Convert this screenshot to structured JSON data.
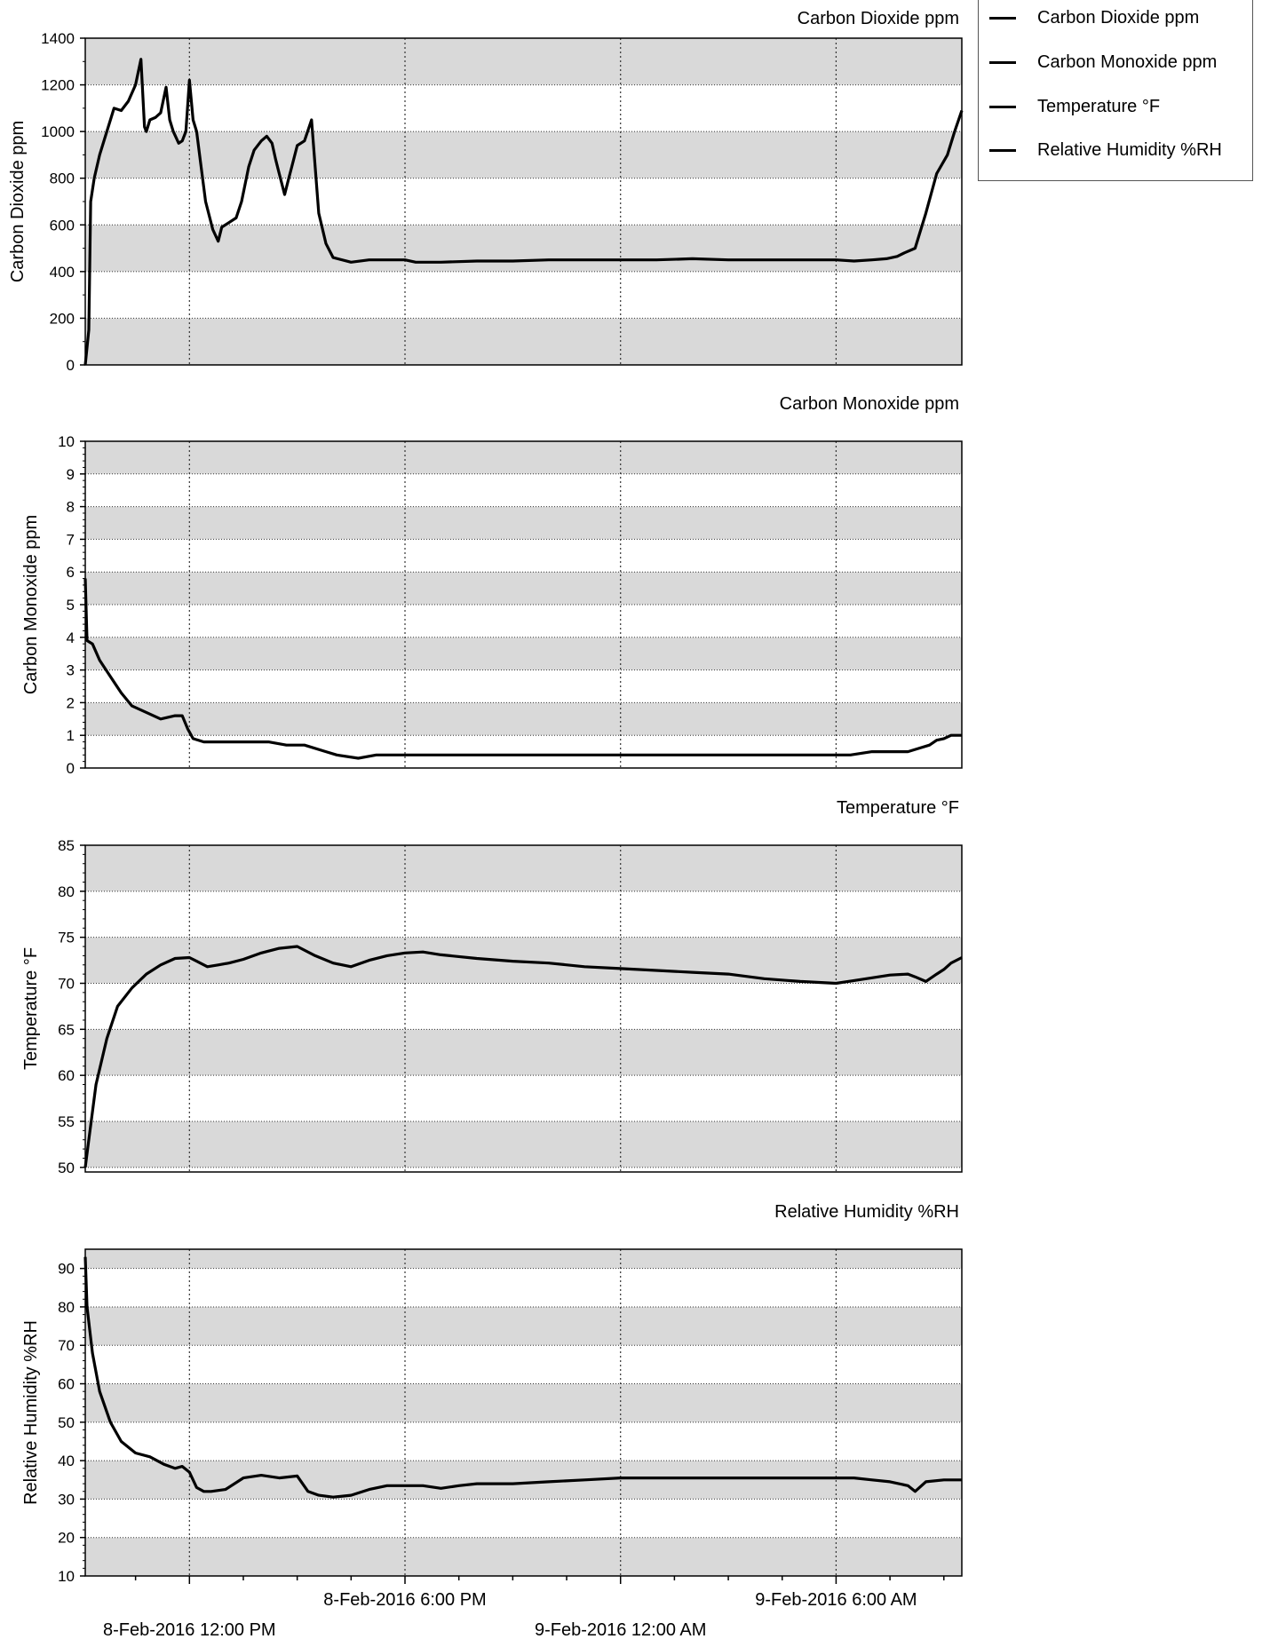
{
  "time_axis": {
    "labels_row1": [
      {
        "t": 18,
        "text": "8-Feb-2016 6:00 PM"
      },
      {
        "t": 30,
        "text": "9-Feb-2016 6:00 AM"
      }
    ],
    "labels_row2": [
      {
        "t": 12,
        "text": "8-Feb-2016 12:00 PM"
      },
      {
        "t": 24,
        "text": "9-Feb-2016 12:00 AM"
      }
    ],
    "range": [
      9.1,
      33.5
    ],
    "major_ticks": [
      12,
      18,
      24,
      30
    ],
    "note_t": "hours since 8-Feb-2016 00:00"
  },
  "legend": {
    "items": [
      "Carbon Dioxide ppm",
      "Carbon Monoxide ppm",
      "Temperature °F",
      "Relative Humidity %RH"
    ]
  },
  "chart_data": [
    {
      "type": "line",
      "title": "Carbon Dioxide ppm",
      "ylabel": "Carbon Dioxide ppm",
      "xlabel": "",
      "ylim": [
        0,
        1400
      ],
      "yticks": [
        0,
        200,
        400,
        600,
        800,
        1000,
        1200,
        1400
      ],
      "series": [
        {
          "name": "Carbon Dioxide ppm",
          "x": [
            9.1,
            9.2,
            9.25,
            9.35,
            9.5,
            9.7,
            9.9,
            10.1,
            10.3,
            10.5,
            10.65,
            10.75,
            10.8,
            10.9,
            11.05,
            11.2,
            11.35,
            11.45,
            11.55,
            11.7,
            11.8,
            11.9,
            12.0,
            12.1,
            12.2,
            12.3,
            12.45,
            12.65,
            12.8,
            12.9,
            13.1,
            13.3,
            13.45,
            13.65,
            13.8,
            14.0,
            14.15,
            14.3,
            14.4,
            14.5,
            14.65,
            14.75,
            14.85,
            15.0,
            15.2,
            15.4,
            15.6,
            15.8,
            16.0,
            16.5,
            17.0,
            17.5,
            18.0,
            18.3,
            18.6,
            19.0,
            20,
            21,
            22,
            23,
            24,
            25,
            26,
            27,
            28,
            29,
            30,
            30.5,
            31,
            31.4,
            31.7,
            31.9,
            32.2,
            32.5,
            32.8,
            33.1,
            33.3,
            33.5
          ],
          "values": [
            0,
            150,
            700,
            800,
            900,
            1000,
            1100,
            1090,
            1130,
            1200,
            1310,
            1020,
            1000,
            1050,
            1060,
            1080,
            1190,
            1050,
            1000,
            950,
            960,
            1000,
            1220,
            1050,
            1000,
            880,
            700,
            580,
            530,
            590,
            610,
            630,
            700,
            850,
            920,
            960,
            980,
            950,
            880,
            820,
            730,
            790,
            850,
            940,
            960,
            1050,
            650,
            520,
            460,
            440,
            450,
            450,
            450,
            440,
            440,
            440,
            445,
            445,
            450,
            450,
            450,
            450,
            455,
            450,
            450,
            450,
            450,
            445,
            450,
            455,
            465,
            480,
            500,
            650,
            820,
            900,
            1000,
            1090
          ]
        }
      ]
    },
    {
      "type": "line",
      "title": "Carbon Monoxide ppm",
      "ylabel": "Carbon Monoxide ppm",
      "xlabel": "",
      "ylim": [
        0,
        10
      ],
      "yticks": [
        0,
        1,
        2,
        3,
        4,
        5,
        6,
        7,
        8,
        9,
        10
      ],
      "series": [
        {
          "name": "Carbon Monoxide ppm",
          "x": [
            9.1,
            9.15,
            9.3,
            9.5,
            9.8,
            10.1,
            10.4,
            10.8,
            11.2,
            11.6,
            11.8,
            11.95,
            12.1,
            12.4,
            12.8,
            13.5,
            14.2,
            14.7,
            15.2,
            15.8,
            16.1,
            16.7,
            17.2,
            17.8,
            18.5,
            20,
            22,
            24,
            26,
            28,
            30,
            30.4,
            31,
            31.5,
            32,
            32.3,
            32.6,
            32.8,
            33.0,
            33.2,
            33.5
          ],
          "values": [
            5.8,
            3.9,
            3.8,
            3.3,
            2.8,
            2.3,
            1.9,
            1.7,
            1.5,
            1.6,
            1.6,
            1.2,
            0.9,
            0.8,
            0.8,
            0.8,
            0.8,
            0.7,
            0.7,
            0.5,
            0.4,
            0.3,
            0.4,
            0.4,
            0.4,
            0.4,
            0.4,
            0.4,
            0.4,
            0.4,
            0.4,
            0.4,
            0.5,
            0.5,
            0.5,
            0.6,
            0.7,
            0.85,
            0.9,
            1.0,
            1.0
          ]
        }
      ]
    },
    {
      "type": "line",
      "title": "Temperature °F",
      "ylabel": "Temperature °F",
      "xlabel": "",
      "ylim": [
        49.5,
        85
      ],
      "yticks": [
        50,
        55,
        60,
        65,
        70,
        75,
        80,
        85
      ],
      "series": [
        {
          "name": "Temperature °F",
          "x": [
            9.1,
            9.2,
            9.4,
            9.7,
            10.0,
            10.4,
            10.8,
            11.2,
            11.6,
            12.0,
            12.2,
            12.5,
            12.8,
            13.1,
            13.5,
            14.0,
            14.5,
            15.0,
            15.5,
            16.0,
            16.5,
            17.0,
            17.5,
            18.0,
            18.5,
            19.0,
            20,
            21,
            22,
            23,
            24,
            25,
            26,
            27,
            28,
            29,
            30,
            30.5,
            31,
            31.5,
            32.0,
            32.2,
            32.5,
            32.8,
            33.0,
            33.2,
            33.5
          ],
          "values": [
            50,
            53,
            59,
            64,
            67.5,
            69.5,
            71,
            72,
            72.7,
            72.8,
            72.4,
            71.8,
            72,
            72.2,
            72.6,
            73.3,
            73.8,
            74,
            73,
            72.2,
            71.8,
            72.5,
            73,
            73.3,
            73.4,
            73.1,
            72.7,
            72.4,
            72.2,
            71.8,
            71.6,
            71.4,
            71.2,
            71,
            70.5,
            70.2,
            70,
            70.3,
            70.6,
            70.9,
            71,
            70.7,
            70.2,
            71,
            71.5,
            72.2,
            72.8
          ]
        }
      ]
    },
    {
      "type": "line",
      "title": "Relative Humidity %RH",
      "ylabel": "Relative Humidity %RH",
      "xlabel": "",
      "ylim": [
        10,
        95
      ],
      "yticks": [
        10,
        20,
        30,
        40,
        50,
        60,
        70,
        80,
        90
      ],
      "series": [
        {
          "name": "Relative Humidity %RH",
          "x": [
            9.1,
            9.15,
            9.3,
            9.5,
            9.8,
            10.1,
            10.5,
            10.9,
            11.3,
            11.6,
            11.8,
            12.0,
            12.2,
            12.4,
            12.6,
            13.0,
            13.5,
            14.0,
            14.5,
            15.0,
            15.3,
            15.6,
            16.0,
            16.5,
            17.0,
            17.5,
            18.0,
            18.5,
            19.0,
            19.5,
            20,
            21,
            22,
            23,
            24,
            26,
            28,
            30,
            30.5,
            31,
            31.5,
            32,
            32.2,
            32.5,
            33.0,
            33.5
          ],
          "values": [
            93,
            80,
            68,
            58,
            50,
            45,
            42,
            41,
            39,
            38,
            38.5,
            37,
            33,
            32,
            32,
            32.5,
            35.5,
            36.2,
            35.5,
            36,
            32,
            31,
            30.5,
            31,
            32.5,
            33.5,
            33.5,
            33.5,
            32.8,
            33.5,
            34,
            34,
            34.5,
            35,
            35.5,
            35.5,
            35.5,
            35.5,
            35.5,
            35,
            34.5,
            33.5,
            32,
            34.5,
            35,
            35
          ]
        }
      ]
    }
  ]
}
